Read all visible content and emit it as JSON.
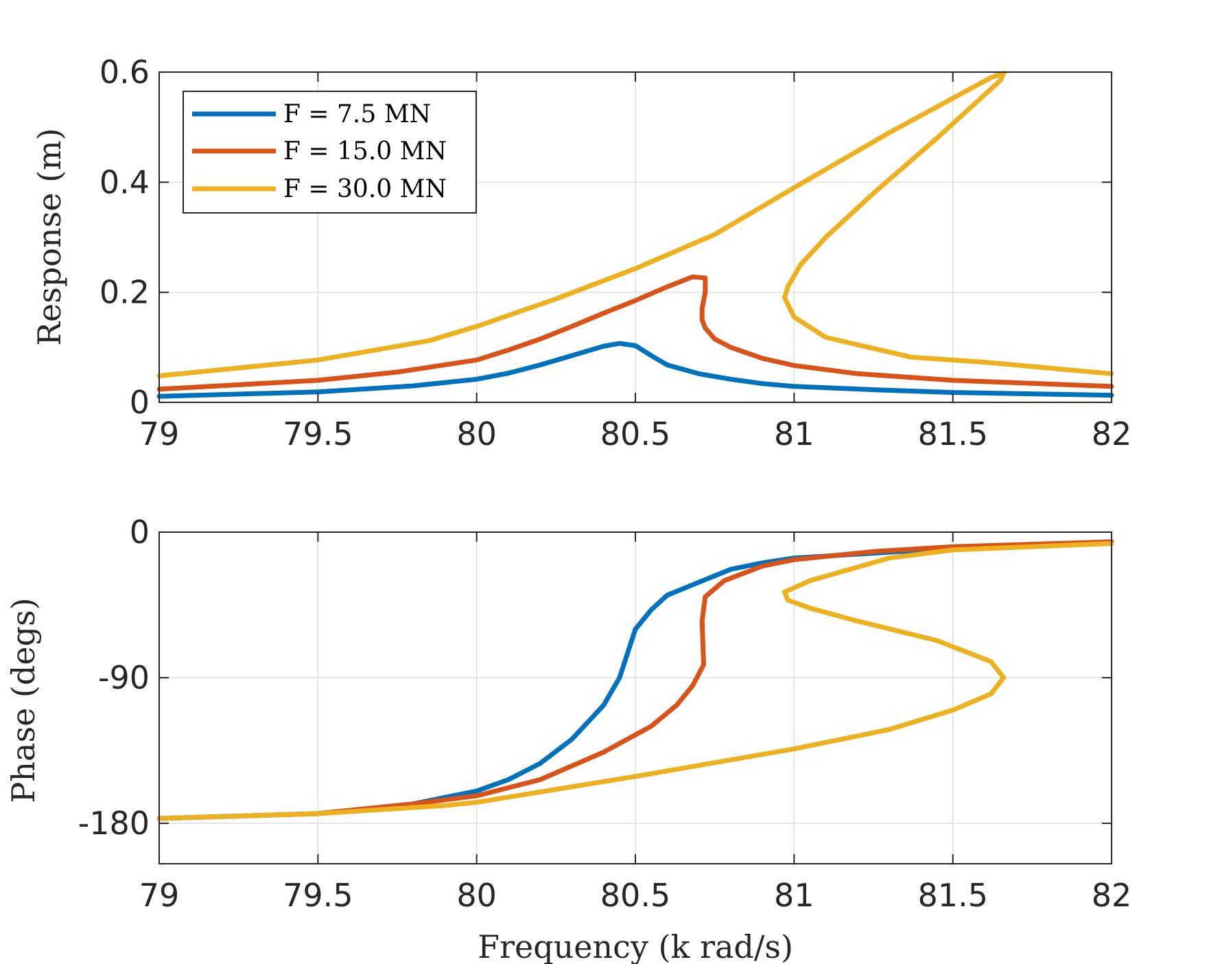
{
  "chart_data": [
    {
      "type": "line",
      "xlabel": "",
      "ylabel": "Response (m)",
      "xlim": [
        79,
        82
      ],
      "ylim": [
        0,
        0.6
      ],
      "xticks": [
        79,
        79.5,
        80,
        80.5,
        81,
        81.5,
        82
      ],
      "xtick_labels": [
        "79",
        "79.5",
        "80",
        "80.5",
        "81",
        "81.5",
        "82"
      ],
      "yticks": [
        0,
        0.2,
        0.4,
        0.6
      ],
      "ytick_labels": [
        "0",
        "0.2",
        "0.4",
        "0.6"
      ],
      "grid": true,
      "legend_position": "top-left",
      "series": [
        {
          "name": "F = 7.5 MN",
          "color": "#0072bd",
          "points": [
            [
              79.0,
              0.011
            ],
            [
              79.5,
              0.019
            ],
            [
              79.8,
              0.03
            ],
            [
              80.0,
              0.042
            ],
            [
              80.1,
              0.053
            ],
            [
              80.2,
              0.068
            ],
            [
              80.3,
              0.085
            ],
            [
              80.4,
              0.102
            ],
            [
              80.45,
              0.107
            ],
            [
              80.5,
              0.103
            ],
            [
              80.55,
              0.085
            ],
            [
              80.6,
              0.068
            ],
            [
              80.7,
              0.052
            ],
            [
              80.8,
              0.042
            ],
            [
              80.9,
              0.034
            ],
            [
              81.0,
              0.029
            ],
            [
              81.25,
              0.023
            ],
            [
              81.5,
              0.018
            ],
            [
              82.0,
              0.013
            ]
          ]
        },
        {
          "name": "F = 15.0 MN",
          "color": "#d95319",
          "points": [
            [
              79.0,
              0.024
            ],
            [
              79.5,
              0.04
            ],
            [
              79.75,
              0.055
            ],
            [
              80.0,
              0.077
            ],
            [
              80.1,
              0.095
            ],
            [
              80.2,
              0.115
            ],
            [
              80.3,
              0.138
            ],
            [
              80.4,
              0.162
            ],
            [
              80.5,
              0.185
            ],
            [
              80.6,
              0.21
            ],
            [
              80.68,
              0.228
            ],
            [
              80.72,
              0.226
            ],
            [
              80.72,
              0.2
            ],
            [
              80.71,
              0.17
            ],
            [
              80.71,
              0.15
            ],
            [
              80.72,
              0.135
            ],
            [
              80.75,
              0.115
            ],
            [
              80.8,
              0.1
            ],
            [
              80.9,
              0.08
            ],
            [
              81.0,
              0.067
            ],
            [
              81.2,
              0.052
            ],
            [
              81.5,
              0.04
            ],
            [
              82.0,
              0.029
            ]
          ]
        },
        {
          "name": "F = 30.0 MN",
          "color": "#edb120",
          "points": [
            [
              79.0,
              0.048
            ],
            [
              79.5,
              0.077
            ],
            [
              79.85,
              0.112
            ],
            [
              80.0,
              0.138
            ],
            [
              80.25,
              0.188
            ],
            [
              80.5,
              0.243
            ],
            [
              80.75,
              0.305
            ],
            [
              81.0,
              0.39
            ],
            [
              81.3,
              0.49
            ],
            [
              81.62,
              0.59
            ],
            [
              81.66,
              0.598
            ],
            [
              81.65,
              0.585
            ],
            [
              81.45,
              0.48
            ],
            [
              81.25,
              0.38
            ],
            [
              81.1,
              0.3
            ],
            [
              81.02,
              0.25
            ],
            [
              80.98,
              0.21
            ],
            [
              80.97,
              0.19
            ],
            [
              81.0,
              0.155
            ],
            [
              81.1,
              0.118
            ],
            [
              81.37,
              0.082
            ],
            [
              81.6,
              0.073
            ],
            [
              82.0,
              0.052
            ]
          ]
        }
      ]
    },
    {
      "type": "line",
      "xlabel": "Frequency (k rad/s)",
      "ylabel": "Phase (degs)",
      "xlim": [
        79,
        82
      ],
      "ylim": [
        -205,
        0
      ],
      "xticks": [
        79,
        79.5,
        80,
        80.5,
        81,
        81.5,
        82
      ],
      "xtick_labels": [
        "79",
        "79.5",
        "80",
        "80.5",
        "81",
        "81.5",
        "82"
      ],
      "yticks": [
        -180,
        -90,
        0
      ],
      "ytick_labels": [
        "-180",
        "-90",
        "0"
      ],
      "grid": true,
      "series": [
        {
          "color": "#0072bd",
          "points": [
            [
              79.0,
              -177
            ],
            [
              79.5,
              -174
            ],
            [
              79.8,
              -168
            ],
            [
              80.0,
              -160
            ],
            [
              80.1,
              -153
            ],
            [
              80.2,
              -143
            ],
            [
              80.3,
              -128
            ],
            [
              80.4,
              -107
            ],
            [
              80.45,
              -90
            ],
            [
              80.5,
              -60
            ],
            [
              80.55,
              -48
            ],
            [
              80.6,
              -39
            ],
            [
              80.7,
              -31
            ],
            [
              80.8,
              -23
            ],
            [
              80.9,
              -19
            ],
            [
              81.0,
              -16
            ],
            [
              81.25,
              -13
            ],
            [
              81.5,
              -10
            ],
            [
              82.0,
              -6
            ]
          ]
        },
        {
          "color": "#d95319",
          "points": [
            [
              79.0,
              -177
            ],
            [
              79.5,
              -174
            ],
            [
              79.8,
              -168
            ],
            [
              80.0,
              -163
            ],
            [
              80.2,
              -153
            ],
            [
              80.4,
              -136
            ],
            [
              80.55,
              -120
            ],
            [
              80.63,
              -107
            ],
            [
              80.68,
              -95
            ],
            [
              80.715,
              -82
            ],
            [
              80.71,
              -55
            ],
            [
              80.72,
              -40
            ],
            [
              80.78,
              -30
            ],
            [
              80.9,
              -21
            ],
            [
              81.0,
              -17
            ],
            [
              81.25,
              -12
            ],
            [
              81.5,
              -9
            ],
            [
              82.0,
              -6
            ]
          ]
        },
        {
          "color": "#edb120",
          "points": [
            [
              79.0,
              -177
            ],
            [
              79.5,
              -174
            ],
            [
              79.9,
              -169
            ],
            [
              80.0,
              -167
            ],
            [
              80.5,
              -151
            ],
            [
              81.0,
              -134
            ],
            [
              81.3,
              -122
            ],
            [
              81.5,
              -110
            ],
            [
              81.62,
              -100
            ],
            [
              81.66,
              -90
            ],
            [
              81.62,
              -80
            ],
            [
              81.45,
              -67
            ],
            [
              81.2,
              -55
            ],
            [
              81.05,
              -47
            ],
            [
              80.98,
              -42
            ],
            [
              80.97,
              -37
            ],
            [
              81.05,
              -30
            ],
            [
              81.3,
              -16
            ],
            [
              81.5,
              -11
            ],
            [
              82.0,
              -7
            ]
          ]
        }
      ]
    }
  ]
}
